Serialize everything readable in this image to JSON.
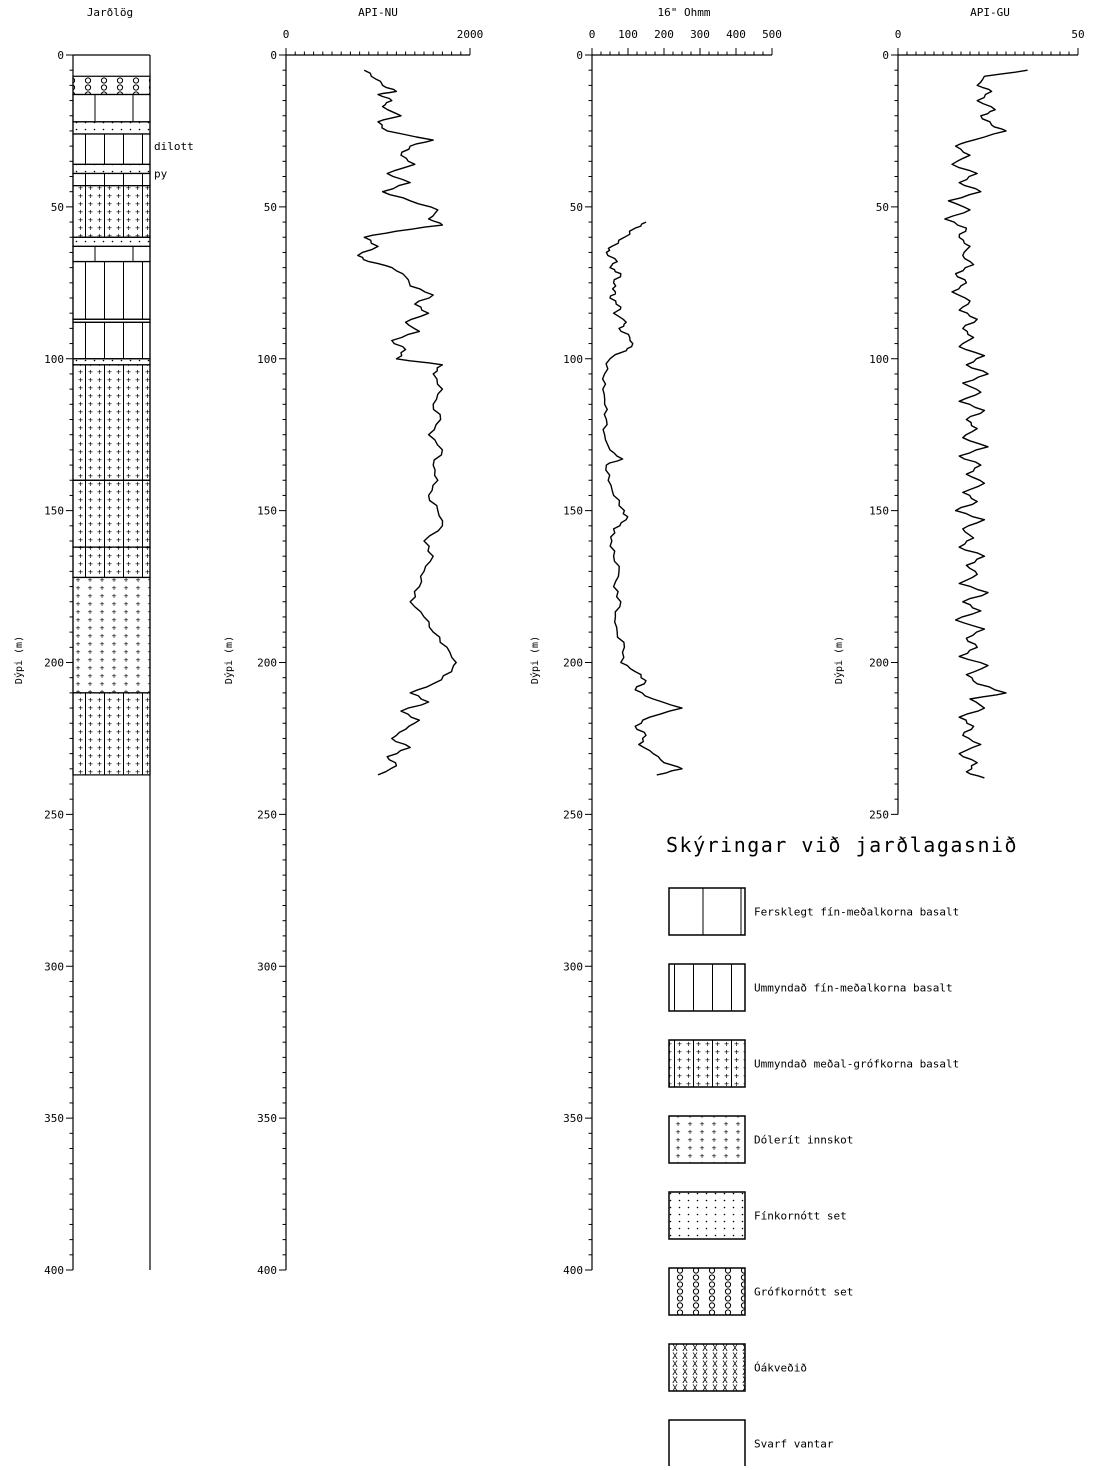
{
  "y_axis": {
    "label": "Dýpi (m)",
    "range": [
      0,
      400
    ],
    "ticks": [
      0,
      50,
      100,
      150,
      200,
      250,
      300,
      350,
      400
    ],
    "minor_step": 5,
    "inverted": true
  },
  "lithology": {
    "title": "Jarðlög",
    "annotations": [
      {
        "text": "dilott",
        "depth": 30
      },
      {
        "text": "py",
        "depth": 39
      }
    ],
    "intervals": [
      {
        "top": 7,
        "bottom": 13,
        "type": "grofkornott_set"
      },
      {
        "top": 13,
        "bottom": 22,
        "type": "fersklegt_basalt"
      },
      {
        "top": 22,
        "bottom": 26,
        "type": "finkornott_set"
      },
      {
        "top": 26,
        "bottom": 36,
        "type": "ummyndad_basalt"
      },
      {
        "top": 36,
        "bottom": 39,
        "type": "finkornott_set"
      },
      {
        "top": 39,
        "bottom": 43,
        "type": "ummyndad_basalt"
      },
      {
        "top": 43,
        "bottom": 60,
        "type": "ummyndad_medal_grof"
      },
      {
        "top": 60,
        "bottom": 63,
        "type": "finkornott_set"
      },
      {
        "top": 63,
        "bottom": 68,
        "type": "fersklegt_basalt"
      },
      {
        "top": 68,
        "bottom": 87,
        "type": "ummyndad_basalt"
      },
      {
        "top": 87,
        "bottom": 88,
        "type": "finkornott_set"
      },
      {
        "top": 88,
        "bottom": 100,
        "type": "ummyndad_basalt"
      },
      {
        "top": 100,
        "bottom": 102,
        "type": "finkornott_set"
      },
      {
        "top": 102,
        "bottom": 140,
        "type": "ummyndad_medal_grof"
      },
      {
        "top": 140,
        "bottom": 162,
        "type": "ummyndad_medal_grof"
      },
      {
        "top": 162,
        "bottom": 172,
        "type": "ummyndad_medal_grof"
      },
      {
        "top": 172,
        "bottom": 210,
        "type": "dolerit"
      },
      {
        "top": 210,
        "bottom": 237,
        "type": "ummyndad_medal_grof"
      }
    ]
  },
  "chart_data": [
    {
      "type": "line",
      "title": "API-NU",
      "xlabel": "API-NU",
      "ylabel": "Dýpi (m)",
      "xlim": [
        0,
        2000
      ],
      "x_ticks": [
        0,
        2000
      ],
      "ylim": [
        0,
        400
      ],
      "series": [
        {
          "depth": [
            5,
            8,
            10,
            12,
            13,
            15,
            17,
            20,
            22,
            25,
            28,
            30,
            33,
            36,
            39,
            42,
            45,
            48,
            51,
            54,
            56,
            58,
            60,
            63,
            66,
            68,
            70,
            73,
            76,
            79,
            82,
            85,
            88,
            91,
            94,
            97,
            100,
            102,
            105,
            110,
            115,
            120,
            125,
            130,
            135,
            140,
            145,
            150,
            155,
            160,
            165,
            170,
            175,
            180,
            185,
            190,
            195,
            200,
            203,
            207,
            210,
            213,
            216,
            219,
            222,
            225,
            228,
            231,
            234,
            237
          ],
          "values": [
            850,
            980,
            1050,
            1200,
            1000,
            1150,
            1050,
            1250,
            1000,
            1100,
            1600,
            1350,
            1250,
            1400,
            1100,
            1350,
            1050,
            1350,
            1650,
            1550,
            1700,
            1200,
            850,
            1000,
            780,
            900,
            1150,
            1300,
            1350,
            1600,
            1400,
            1550,
            1300,
            1450,
            1150,
            1300,
            1200,
            1700,
            1600,
            1700,
            1600,
            1680,
            1550,
            1700,
            1600,
            1650,
            1550,
            1650,
            1700,
            1500,
            1600,
            1500,
            1450,
            1350,
            1500,
            1600,
            1750,
            1850,
            1800,
            1600,
            1350,
            1550,
            1250,
            1450,
            1300,
            1150,
            1350,
            1100,
            1200,
            1000
          ]
        }
      ]
    },
    {
      "type": "line",
      "title": "16\" Ohmm",
      "xlabel": "16\" Ohmm",
      "ylabel": "Dýpi (m)",
      "xlim": [
        0,
        500
      ],
      "x_ticks": [
        0,
        100,
        200,
        300,
        400,
        500
      ],
      "ylim": [
        0,
        400
      ],
      "series": [
        {
          "depth": [
            55,
            57,
            60,
            63,
            65,
            68,
            70,
            72,
            75,
            78,
            80,
            83,
            85,
            88,
            90,
            93,
            96,
            98,
            100,
            105,
            110,
            115,
            120,
            125,
            130,
            133,
            135,
            140,
            145,
            150,
            153,
            156,
            160,
            165,
            170,
            175,
            180,
            185,
            190,
            195,
            200,
            203,
            206,
            209,
            212,
            215,
            218,
            221,
            224,
            227,
            230,
            233,
            235,
            237
          ],
          "values": [
            150,
            120,
            90,
            55,
            40,
            70,
            50,
            80,
            60,
            65,
            50,
            80,
            60,
            95,
            75,
            105,
            110,
            80,
            50,
            35,
            30,
            35,
            40,
            35,
            50,
            85,
            40,
            45,
            60,
            90,
            95,
            60,
            55,
            60,
            75,
            60,
            80,
            65,
            70,
            90,
            80,
            120,
            150,
            120,
            170,
            250,
            160,
            120,
            150,
            130,
            170,
            200,
            250,
            180
          ]
        }
      ]
    },
    {
      "type": "line",
      "title": "API-GU",
      "xlabel": "API-GU",
      "ylabel": "Dýpi (m)",
      "xlim": [
        0,
        50
      ],
      "x_ticks": [
        0,
        50
      ],
      "ylim": [
        0,
        250
      ],
      "series": [
        {
          "depth": [
            5,
            7,
            10,
            12,
            15,
            18,
            20,
            23,
            25,
            28,
            30,
            33,
            36,
            39,
            42,
            45,
            48,
            51,
            54,
            57,
            60,
            63,
            66,
            69,
            72,
            75,
            78,
            81,
            84,
            87,
            90,
            93,
            96,
            99,
            102,
            105,
            108,
            111,
            114,
            117,
            120,
            123,
            126,
            129,
            132,
            135,
            138,
            141,
            144,
            147,
            150,
            153,
            156,
            159,
            162,
            165,
            168,
            171,
            174,
            177,
            180,
            183,
            186,
            189,
            192,
            195,
            198,
            201,
            204,
            207,
            210,
            212,
            215,
            218,
            221,
            224,
            227,
            230,
            233,
            236,
            238
          ],
          "values": [
            36,
            24,
            22,
            26,
            22,
            27,
            23,
            26,
            30,
            21,
            16,
            20,
            15,
            22,
            17,
            23,
            14,
            20,
            13,
            19,
            17,
            20,
            18,
            21,
            16,
            19,
            15,
            20,
            17,
            22,
            18,
            21,
            17,
            24,
            19,
            25,
            18,
            23,
            17,
            24,
            19,
            22,
            18,
            25,
            17,
            23,
            19,
            24,
            18,
            22,
            16,
            24,
            18,
            21,
            17,
            24,
            19,
            22,
            17,
            25,
            18,
            23,
            16,
            24,
            19,
            22,
            17,
            25,
            19,
            22,
            30,
            20,
            24,
            17,
            21,
            18,
            23,
            17,
            22,
            19,
            24
          ]
        }
      ]
    }
  ],
  "legend": {
    "title": "Skýringar við jarðlagasnið",
    "items": [
      {
        "type": "fersklegt_basalt",
        "label": "Fersklegt fín-meðalkorna basalt"
      },
      {
        "type": "ummyndad_basalt",
        "label": "Ummyndað fín-meðalkorna basalt"
      },
      {
        "type": "ummyndad_medal_grof",
        "label": "Ummyndað meðal-grófkorna basalt"
      },
      {
        "type": "dolerit",
        "label": "Dólerít innskot"
      },
      {
        "type": "finkornott_set",
        "label": "Fínkornótt set"
      },
      {
        "type": "grofkornott_set",
        "label": "Grófkornótt set"
      },
      {
        "type": "oakvedid",
        "label": "Óákveðið"
      },
      {
        "type": "svarf_vantar",
        "label": "Svarf vantar"
      }
    ]
  }
}
